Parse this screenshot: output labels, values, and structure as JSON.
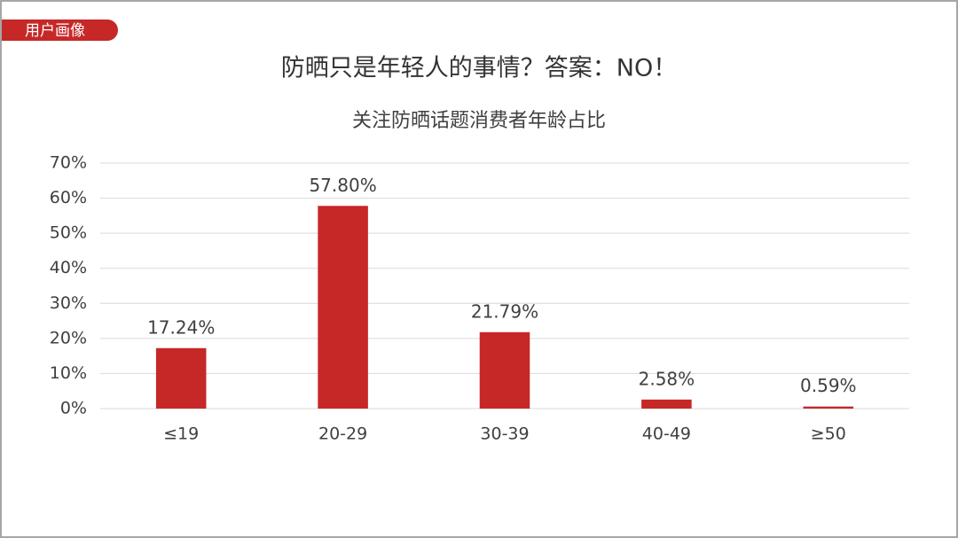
{
  "header": {
    "tag": "用户画像",
    "title": "防晒只是年轻人的事情？答案：NO！"
  },
  "chart_data": {
    "type": "bar",
    "title": "关注防晒话题消费者年龄占比",
    "categories": [
      "≤19",
      "20-29",
      "30-39",
      "40-49",
      "≥50"
    ],
    "values": [
      17.24,
      57.8,
      21.79,
      2.58,
      0.59
    ],
    "value_labels": [
      "17.24%",
      "57.80%",
      "21.79%",
      "2.58%",
      "0.59%"
    ],
    "color": "#c62828",
    "ylim": [
      0,
      70
    ],
    "yticks": [
      {
        "value": 0,
        "label": "0%"
      },
      {
        "value": 10,
        "label": "10%"
      },
      {
        "value": 20,
        "label": "20%"
      },
      {
        "value": 30,
        "label": "30%"
      },
      {
        "value": 40,
        "label": "40%"
      },
      {
        "value": 50,
        "label": "50%"
      },
      {
        "value": 60,
        "label": "60%"
      },
      {
        "value": 70,
        "label": "70%"
      }
    ],
    "grid": true
  }
}
